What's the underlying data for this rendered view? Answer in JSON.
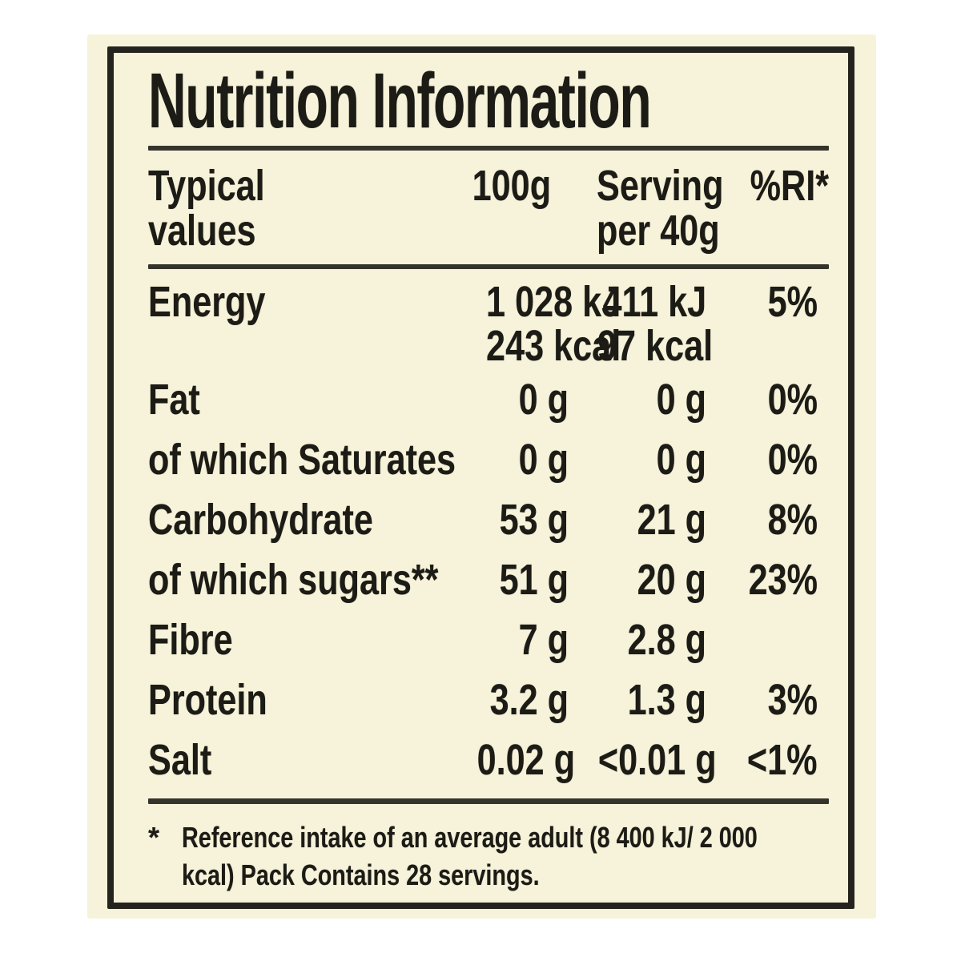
{
  "colors": {
    "page_bg": "#ffffff",
    "label_bg": "#f6f3da",
    "ink": "#1c1b15",
    "rule": "#35342c",
    "border": "#24231d"
  },
  "label": {
    "title": "Nutrition Information",
    "header": {
      "col1_line1": "Typical",
      "col1_line2": "values",
      "col2": "100g",
      "col3_line1": "Serving",
      "col3_line2": "per 40g",
      "col4": "%RI*"
    },
    "rows": [
      {
        "name": "Energy",
        "per100g": "1 028 kJ",
        "per100g_line2": "243 kcal",
        "serving": "411 kJ",
        "serving_line2": "97 kcal",
        "ri": "5%"
      },
      {
        "name": "Fat",
        "per100g": "0 g",
        "serving": "0 g",
        "ri": "0%"
      },
      {
        "name": "of which Saturates",
        "per100g": "0 g",
        "serving": "0 g",
        "ri": "0%"
      },
      {
        "name": "Carbohydrate",
        "per100g": "53 g",
        "serving": "21 g",
        "ri": "8%"
      },
      {
        "name": "of which sugars**",
        "per100g": "51 g",
        "serving": "20 g",
        "ri": "23%"
      },
      {
        "name": "Fibre",
        "per100g": "7 g",
        "serving": "2.8 g",
        "ri": ""
      },
      {
        "name": "Protein",
        "per100g": "3.2 g",
        "serving": "1.3 g",
        "ri": "3%"
      },
      {
        "name": "Salt",
        "per100g": "0.02 g",
        "serving": "<0.01 g",
        "ri": "<1%"
      }
    ],
    "footnote": {
      "marker": "*",
      "line1": "Reference intake of an average adult (8 400 kJ/ 2 000",
      "line2": "kcal) Pack Contains 28 servings."
    }
  }
}
